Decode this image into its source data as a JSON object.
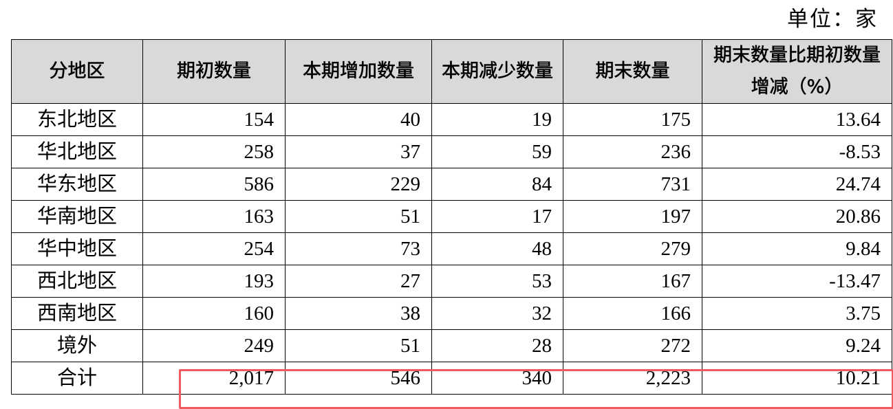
{
  "unit_label": "单位：家",
  "columns": [
    "分地区",
    "期初数量",
    "本期增加数量",
    "本期减少数量",
    "期末数量",
    "期末数量比期初数量增减（%）"
  ],
  "rows": [
    [
      "东北地区",
      "154",
      "40",
      "19",
      "175",
      "13.64"
    ],
    [
      "华北地区",
      "258",
      "37",
      "59",
      "236",
      "-8.53"
    ],
    [
      "华东地区",
      "586",
      "229",
      "84",
      "731",
      "24.74"
    ],
    [
      "华南地区",
      "163",
      "51",
      "17",
      "197",
      "20.86"
    ],
    [
      "华中地区",
      "254",
      "73",
      "48",
      "279",
      "9.84"
    ],
    [
      "西北地区",
      "193",
      "27",
      "53",
      "167",
      "-13.47"
    ],
    [
      "西南地区",
      "160",
      "38",
      "32",
      "166",
      "3.75"
    ],
    [
      "境外",
      "249",
      "51",
      "28",
      "272",
      "9.24"
    ],
    [
      "合计",
      "2,017",
      "546",
      "340",
      "2,223",
      "10.21"
    ]
  ],
  "highlight_color": "#f05a5e",
  "header_bg": "#d9d9d9"
}
